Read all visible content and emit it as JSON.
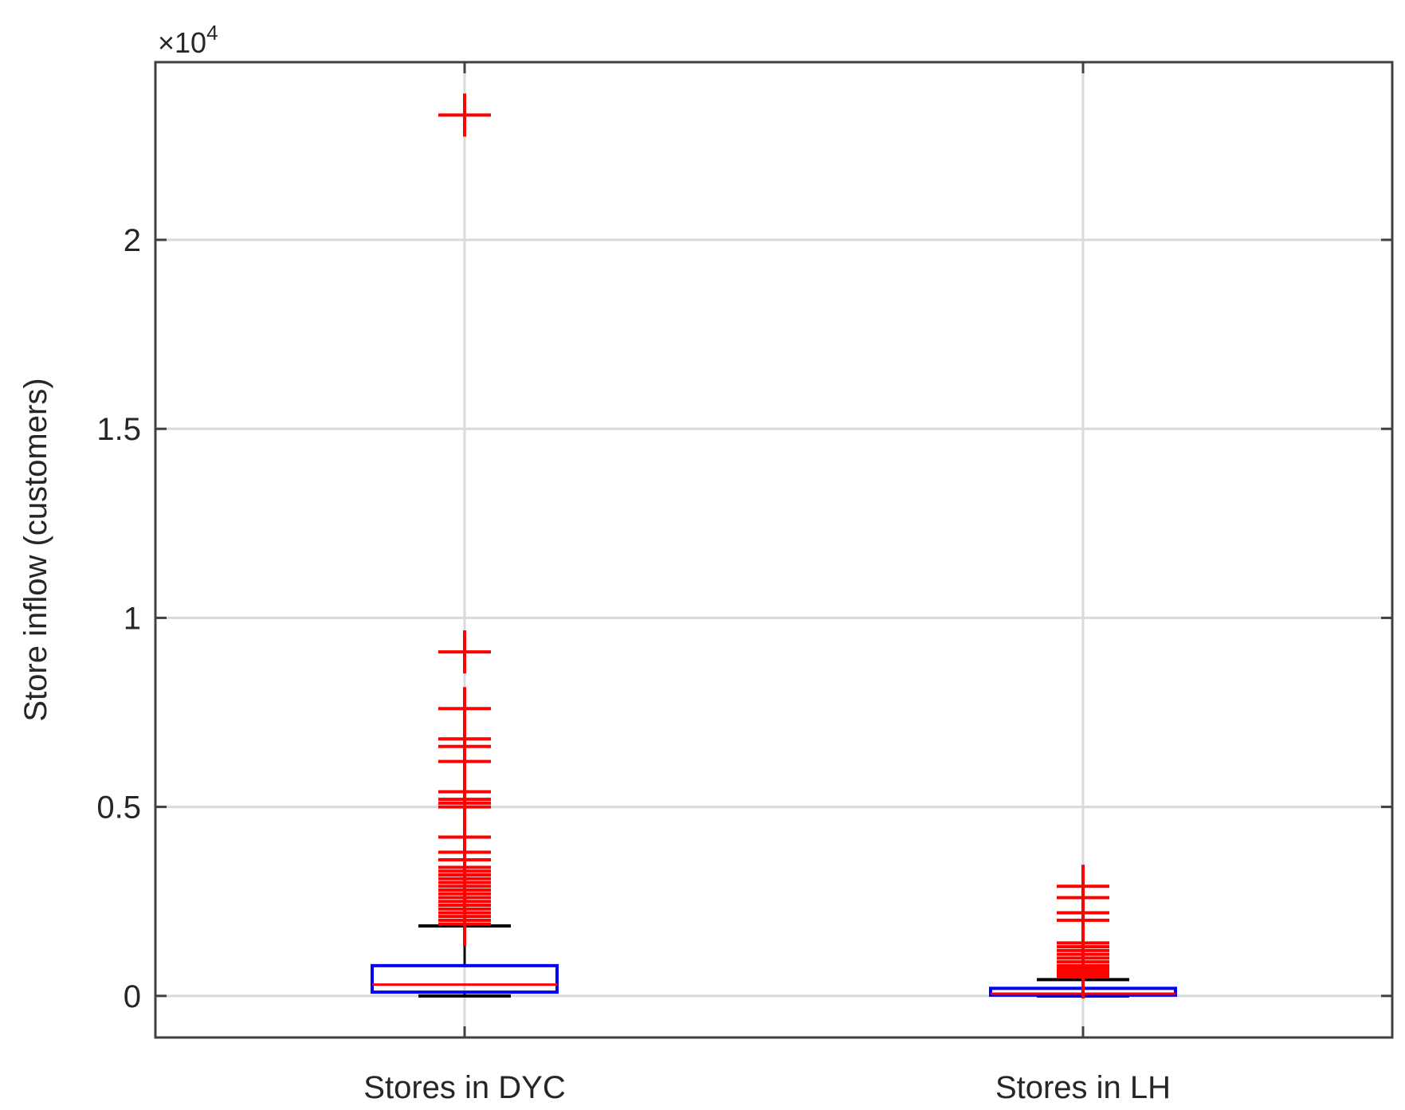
{
  "chart_data": {
    "type": "boxplot",
    "ylabel": "Store inflow (customers)",
    "xlabel": "",
    "title": "",
    "y_exponent_label": {
      "base": "×10",
      "power": "4"
    },
    "ylim": [
      -0.11,
      2.47
    ],
    "yticks": [
      0,
      0.5,
      1,
      1.5,
      2
    ],
    "ytick_labels": [
      "0",
      "0.5",
      "1",
      "1.5",
      "2"
    ],
    "grid": true,
    "colors": {
      "box": "#0000ff",
      "median": "#ff0000",
      "whisker": "#000000",
      "outlier": "#ff0000",
      "grid": "#d9d9d9",
      "axes": "#404040"
    },
    "groups": [
      {
        "label": "Stores in DYC",
        "min": 0,
        "q1": 0.01,
        "median": 0.03,
        "q3": 0.08,
        "max": 0.185,
        "outliers": [
          2.33,
          0.91,
          0.76,
          0.68,
          0.66,
          0.62,
          0.54,
          0.52,
          0.51,
          0.5,
          0.42,
          0.38,
          0.36,
          0.34,
          0.33,
          0.32,
          0.31,
          0.3,
          0.29,
          0.28,
          0.27,
          0.26,
          0.25,
          0.24,
          0.23,
          0.22,
          0.21,
          0.2,
          0.19
        ]
      },
      {
        "label": "Stores in LH",
        "min": 0,
        "q1": 0.002,
        "median": 0.006,
        "q3": 0.02,
        "max": 0.043,
        "outliers": [
          0.29,
          0.26,
          0.22,
          0.2,
          0.14,
          0.13,
          0.12,
          0.11,
          0.1,
          0.09,
          0.08,
          0.075,
          0.07,
          0.065,
          0.06,
          0.055,
          0.05
        ]
      }
    ]
  }
}
